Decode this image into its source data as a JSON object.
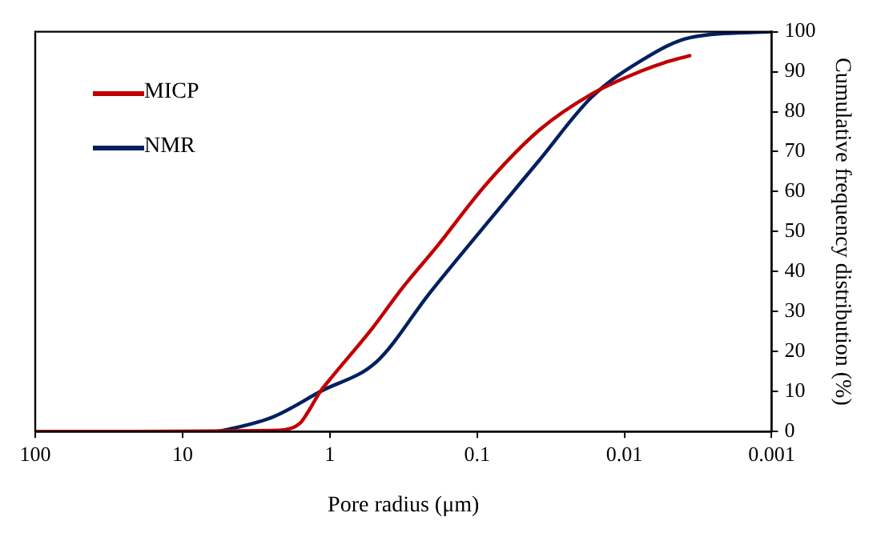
{
  "chart_data": {
    "type": "line",
    "xlabel": "Pore radius (μm)",
    "ylabel": "Cumulative frequency distribution (%)",
    "log": "x",
    "xlim": [
      100,
      0.001
    ],
    "xticks": [
      100,
      10,
      1,
      0.1,
      0.01,
      0.001
    ],
    "ylim": [
      0,
      100
    ],
    "yticks": [
      0,
      10,
      20,
      30,
      40,
      50,
      60,
      70,
      80,
      90,
      100
    ],
    "grid": false,
    "legend": "top left",
    "marker": "none",
    "line_style": "solid",
    "series": [
      {
        "name": "MICP",
        "color": "#c00000",
        "x": [
          100,
          2.2,
          1.6,
          1.4,
          1.16,
          1.0,
          0.51,
          0.32,
          0.19,
          0.086,
          0.0375,
          0.0167,
          0.0075,
          0.0054,
          0.0036
        ],
        "values": [
          0,
          0.3,
          2,
          5,
          10,
          13,
          26,
          36,
          46,
          62,
          75.5,
          84.4,
          90.3,
          92.2,
          94
        ]
      },
      {
        "name": "NMR",
        "color": "#002060",
        "x": [
          100,
          6,
          4.7,
          2.41,
          1.16,
          0.48,
          0.21,
          0.086,
          0.0375,
          0.0167,
          0.0075,
          0.0036,
          0.001
        ],
        "values": [
          0,
          0,
          0.7,
          3.7,
          10,
          17.5,
          34.6,
          52,
          68,
          83.6,
          93,
          98.5,
          100
        ]
      }
    ]
  }
}
